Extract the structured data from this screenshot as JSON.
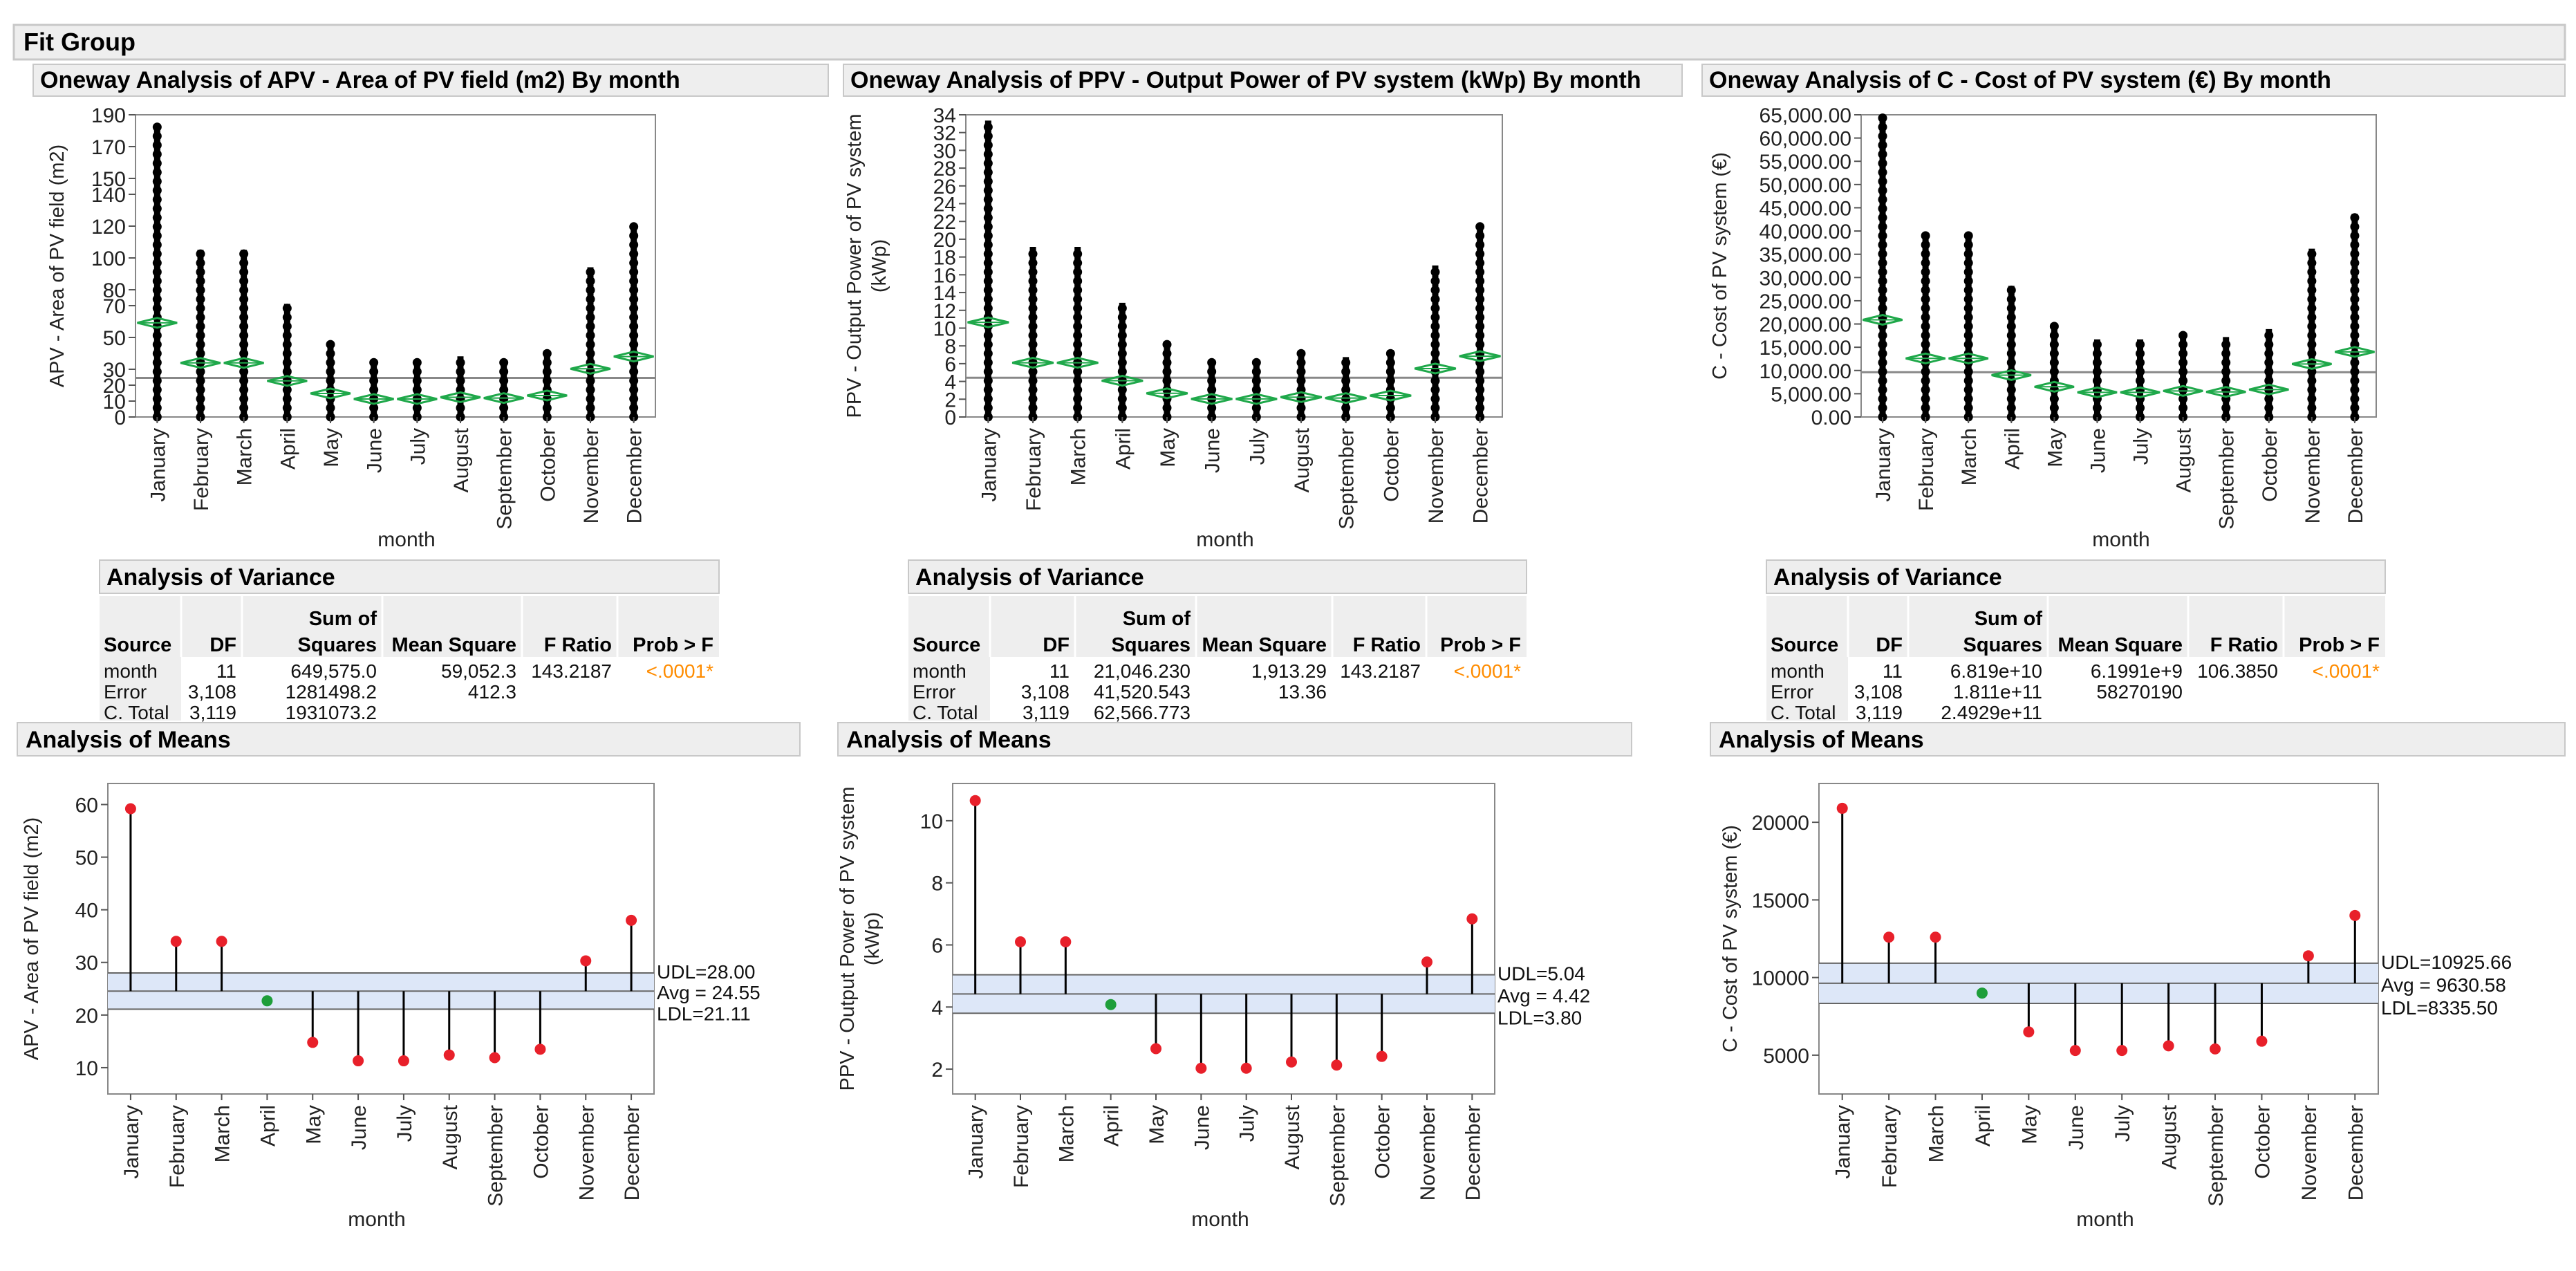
{
  "group_title": "Fit Group",
  "panels": [
    {
      "title": "Oneway Analysis of APV - Area of PV field (m2) By month",
      "ylabel": "APV - Area of PV field (m2)",
      "xlabel": "month",
      "anova": {
        "title": "Analysis of Variance",
        "headers": [
          "Source",
          "DF",
          "Sum of\nSquares",
          "Mean Square",
          "F Ratio",
          "Prob > F"
        ],
        "rows": [
          [
            "month",
            "11",
            "649,575.0",
            "59,052.3",
            "143.2187",
            "<.0001*"
          ],
          [
            "Error",
            "3,108",
            "1281498.2",
            "412.3",
            "",
            ""
          ],
          [
            "C. Total",
            "3,119",
            "1931073.2",
            "",
            "",
            ""
          ]
        ]
      },
      "means_title": "Analysis of Means",
      "means_ylabel": "APV - Area of PV field (m2)",
      "means_xlabel": "month",
      "limits": {
        "udl_label": "UDL=28.00",
        "avg_label": "Avg = 24.55",
        "ldl_label": "LDL=21.11"
      }
    },
    {
      "title": "Oneway Analysis of PPV - Output Power of PV system (kWp) By month",
      "ylabel": "PPV - Output Power of PV system\n(kWp)",
      "xlabel": "month",
      "anova": {
        "title": "Analysis of Variance",
        "headers": [
          "Source",
          "DF",
          "Sum of\nSquares",
          "Mean Square",
          "F Ratio",
          "Prob > F"
        ],
        "rows": [
          [
            "month",
            "11",
            "21,046.230",
            "1,913.29",
            "143.2187",
            "<.0001*"
          ],
          [
            "Error",
            "3,108",
            "41,520.543",
            "13.36",
            "",
            ""
          ],
          [
            "C. Total",
            "3,119",
            "62,566.773",
            "",
            "",
            ""
          ]
        ]
      },
      "means_title": "Analysis of Means",
      "means_ylabel": "PPV - Output Power of PV system\n(kWp)",
      "means_xlabel": "month",
      "limits": {
        "udl_label": "UDL=5.04",
        "avg_label": "Avg = 4.42",
        "ldl_label": "LDL=3.80"
      }
    },
    {
      "title": "Oneway Analysis of C - Cost of PV system (€) By month",
      "ylabel": "C - Cost of PV system (€)",
      "xlabel": "month",
      "anova": {
        "title": "Analysis of Variance",
        "headers": [
          "Source",
          "DF",
          "Sum of\nSquares",
          "Mean Square",
          "F Ratio",
          "Prob > F"
        ],
        "rows": [
          [
            "month",
            "11",
            "6.819e+10",
            "6.1991e+9",
            "106.3850",
            "<.0001*"
          ],
          [
            "Error",
            "3,108",
            "1.811e+11",
            "58270190",
            "",
            ""
          ],
          [
            "C. Total",
            "3,119",
            "2.4929e+11",
            "",
            "",
            ""
          ]
        ]
      },
      "means_title": "Analysis of Means",
      "means_ylabel": "C - Cost of PV system (€)",
      "means_xlabel": "month",
      "limits": {
        "udl_label": "UDL=10925.66",
        "avg_label": "Avg = 9630.58",
        "ldl_label": "LDL=8335.50"
      }
    }
  ],
  "chart_data": [
    {
      "type": "scatter",
      "title": "Oneway Analysis of APV - Area of PV field (m2) By month",
      "xlabel": "month",
      "ylabel": "APV - Area of PV field (m2)",
      "categories": [
        "January",
        "February",
        "March",
        "April",
        "May",
        "June",
        "July",
        "August",
        "September",
        "October",
        "November",
        "December"
      ],
      "min": [
        0,
        0,
        0,
        0,
        0,
        0,
        0,
        0,
        0,
        0,
        0,
        0
      ],
      "max": [
        185,
        106,
        106,
        72,
        47,
        36,
        36,
        39,
        37,
        42,
        95,
        120
      ],
      "mean": [
        59.2,
        34.0,
        34.0,
        22.7,
        14.8,
        11.3,
        11.3,
        12.4,
        11.9,
        13.5,
        30.3,
        38.0
      ],
      "grand_mean": 24.55,
      "ylim": [
        0,
        190
      ],
      "yticks": [
        0,
        10,
        20,
        30,
        50,
        70,
        80,
        100,
        120,
        140,
        150,
        170,
        190
      ]
    },
    {
      "type": "scatter",
      "title": "Oneway Analysis of PPV - Output Power of PV system (kWp) By month",
      "xlabel": "month",
      "ylabel": "PPV - Output Power of PV system (kWp)",
      "categories": [
        "January",
        "February",
        "March",
        "April",
        "May",
        "June",
        "July",
        "August",
        "September",
        "October",
        "November",
        "December"
      ],
      "min": [
        0,
        0,
        0,
        0,
        0,
        0,
        0,
        0,
        0,
        0,
        0,
        0
      ],
      "max": [
        33.5,
        19.3,
        19.3,
        13.0,
        8.5,
        6.6,
        6.6,
        7.2,
        6.9,
        7.7,
        17.2,
        21.7
      ],
      "mean": [
        10.65,
        6.1,
        6.1,
        4.08,
        2.66,
        2.03,
        2.03,
        2.23,
        2.13,
        2.41,
        5.45,
        6.84
      ],
      "grand_mean": 4.42,
      "ylim": [
        0,
        34
      ],
      "yticks": [
        0,
        2,
        4,
        6,
        8,
        10,
        12,
        14,
        16,
        18,
        20,
        22,
        24,
        26,
        28,
        30,
        32,
        34
      ]
    },
    {
      "type": "scatter",
      "title": "Oneway Analysis of C - Cost of PV system (€) By month",
      "xlabel": "month",
      "ylabel": "C - Cost of PV system (€)",
      "categories": [
        "January",
        "February",
        "March",
        "April",
        "May",
        "June",
        "July",
        "August",
        "September",
        "October",
        "November",
        "December"
      ],
      "min": [
        0,
        0,
        0,
        0,
        0,
        0,
        0,
        0,
        0,
        0,
        0,
        0
      ],
      "max": [
        65000,
        39800,
        39800,
        28500,
        20500,
        17000,
        17000,
        18000,
        17500,
        19200,
        36500,
        44000
      ],
      "mean": [
        20900,
        12600,
        12600,
        9000,
        6500,
        5300,
        5300,
        5600,
        5400,
        5900,
        11400,
        14000
      ],
      "grand_mean": 9630.58,
      "ylim": [
        0,
        65000
      ],
      "yticks": [
        0,
        5000,
        10000,
        15000,
        20000,
        25000,
        30000,
        35000,
        40000,
        45000,
        50000,
        55000,
        60000,
        65000
      ],
      "ytick_labels": [
        "0.00",
        "5,000.00",
        "10,000.00",
        "15,000.00",
        "20,000.00",
        "25,000.00",
        "30,000.00",
        "35,000.00",
        "40,000.00",
        "45,000.00",
        "50,000.00",
        "55,000.00",
        "60,000.00",
        "65,000.00"
      ]
    },
    {
      "type": "scatter",
      "title": "Analysis of Means",
      "xlabel": "month",
      "ylabel": "APV - Area of PV field (m2)",
      "categories": [
        "January",
        "February",
        "March",
        "April",
        "May",
        "June",
        "July",
        "August",
        "September",
        "October",
        "November",
        "December"
      ],
      "values": [
        59.2,
        34.0,
        34.0,
        22.7,
        14.8,
        11.3,
        11.3,
        12.4,
        11.9,
        13.5,
        30.3,
        38.0
      ],
      "avg": 24.55,
      "udl": 28.0,
      "ldl": 21.11,
      "ylim": [
        5,
        64
      ],
      "yticks": [
        10,
        20,
        30,
        40,
        50,
        60
      ]
    },
    {
      "type": "scatter",
      "title": "Analysis of Means",
      "xlabel": "month",
      "ylabel": "PPV - Output Power of PV system (kWp)",
      "categories": [
        "January",
        "February",
        "March",
        "April",
        "May",
        "June",
        "July",
        "August",
        "September",
        "October",
        "November",
        "December"
      ],
      "values": [
        10.65,
        6.1,
        6.1,
        4.08,
        2.66,
        2.03,
        2.03,
        2.23,
        2.13,
        2.41,
        5.45,
        6.84
      ],
      "avg": 4.42,
      "udl": 5.04,
      "ldl": 3.8,
      "ylim": [
        1.2,
        11.2
      ],
      "yticks": [
        2,
        4,
        6,
        8,
        10
      ]
    },
    {
      "type": "scatter",
      "title": "Analysis of Means",
      "xlabel": "month",
      "ylabel": "C - Cost of PV system (€)",
      "categories": [
        "January",
        "February",
        "March",
        "April",
        "May",
        "June",
        "July",
        "August",
        "September",
        "October",
        "November",
        "December"
      ],
      "values": [
        20900,
        12600,
        12600,
        9000,
        6500,
        5300,
        5300,
        5600,
        5400,
        5900,
        11400,
        14000
      ],
      "avg": 9630.58,
      "udl": 10925.66,
      "ldl": 8335.5,
      "ylim": [
        2500,
        22500
      ],
      "yticks": [
        5000,
        10000,
        15000,
        20000
      ]
    }
  ],
  "colors": {
    "header_bg": "#eeeeee",
    "header_border": "#c8c8c8",
    "diamond": "#1fa84a",
    "point_above_below": "#e8202a",
    "point_within": "#1e9e3a",
    "band": "#dde7f8",
    "prob": "#ff8c00"
  }
}
